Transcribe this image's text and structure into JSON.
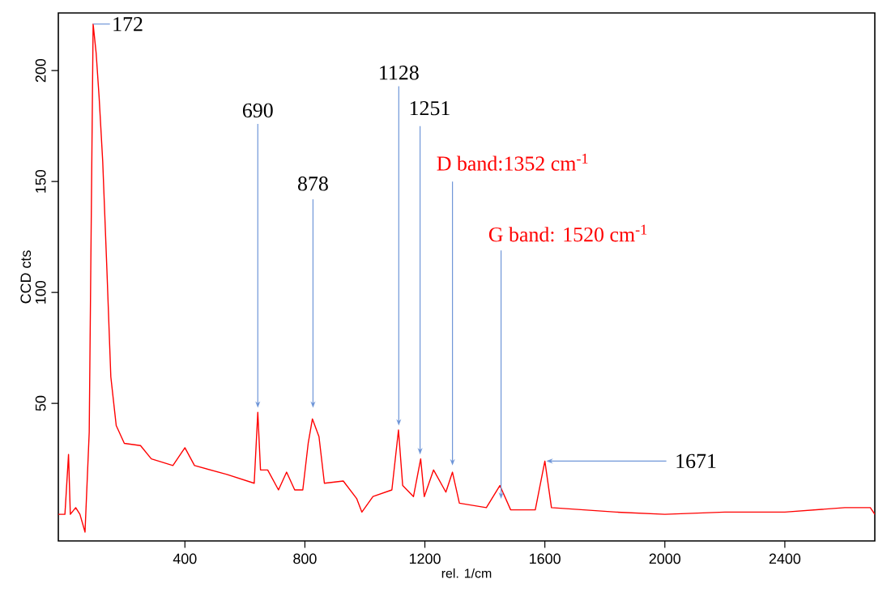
{
  "chart_data": {
    "type": "line",
    "xlabel": "rel. 1/cm",
    "ylabel": "CCD cts",
    "xlim": [
      -22,
      2700
    ],
    "ylim": [
      -12,
      226
    ],
    "xticks": [
      400,
      800,
      1200,
      1600,
      2000,
      2400
    ],
    "yticks": [
      50,
      100,
      150,
      200
    ],
    "grid": false,
    "marker": "none",
    "line_style": "solid",
    "x": [
      -22,
      0,
      12,
      18,
      36,
      50,
      67,
      81,
      94,
      104,
      114,
      126,
      140,
      153,
      171,
      198,
      252,
      288,
      360,
      400,
      432,
      540,
      631,
      643,
      652,
      676,
      712,
      739,
      766,
      793,
      811,
      825,
      847,
      865,
      928,
      973,
      990,
      1027,
      1090,
      1112,
      1126,
      1162,
      1186,
      1198,
      1229,
      1270,
      1292,
      1315,
      1405,
      1450,
      1486,
      1568,
      1600,
      1622,
      1838,
      2000,
      2200,
      2400,
      2600,
      2685,
      2700
    ],
    "series": [
      {
        "color": "#ff0000",
        "values": [
          0,
          0,
          27,
          0,
          3,
          0,
          -8,
          37,
          221,
          208,
          188,
          159,
          110,
          62,
          40,
          32,
          31,
          25,
          22,
          30,
          22,
          18,
          14,
          46,
          20,
          20,
          11,
          19,
          11,
          11,
          32,
          43,
          35,
          14,
          15,
          7,
          1,
          8,
          11,
          38,
          13,
          8,
          25,
          8,
          20,
          10,
          19,
          5,
          3,
          13,
          2,
          2,
          24,
          3,
          1,
          0,
          1,
          1,
          3,
          3,
          0
        ]
      }
    ],
    "annotations": [
      {
        "text": "172",
        "x": 94,
        "y": 221
      },
      {
        "text": "690",
        "x": 643,
        "y": 48
      },
      {
        "text": "878",
        "x": 827,
        "y": 48
      },
      {
        "text": "1128",
        "x": 1113,
        "y": 40
      },
      {
        "text": "1251",
        "x": 1184,
        "y": 27
      },
      {
        "text": "D band:1352 cm$^{-1}$",
        "x": 1292,
        "y": 22
      },
      {
        "text": "G band: 1520 cm$^{-1}$",
        "x": 1454,
        "y": 7
      },
      {
        "text": "1671",
        "x": 1605,
        "y": 24
      }
    ]
  }
}
